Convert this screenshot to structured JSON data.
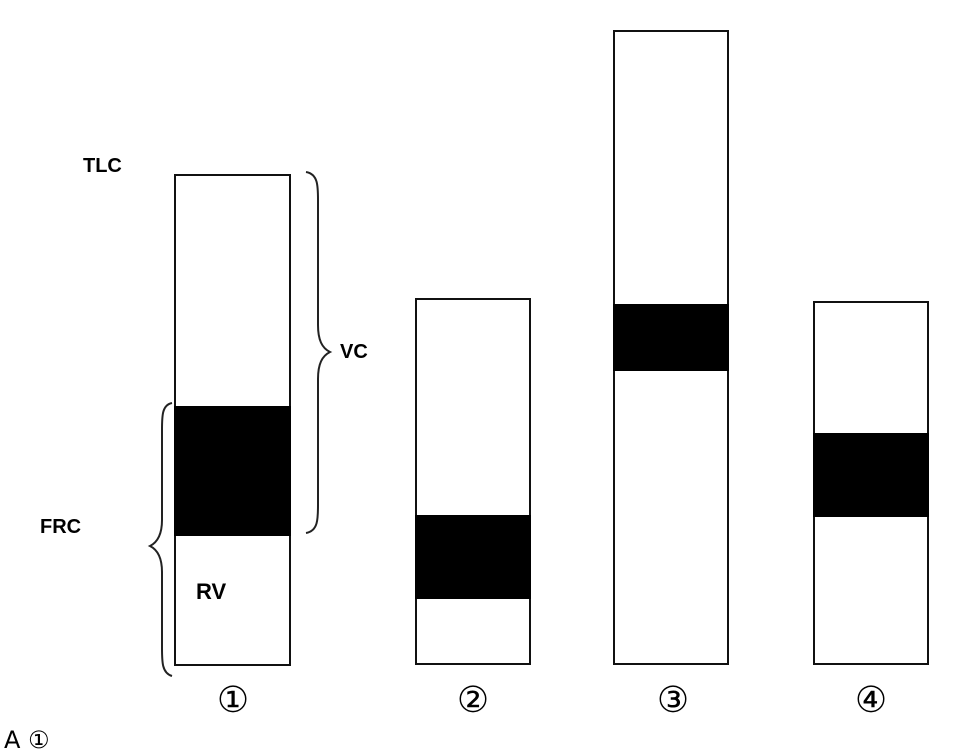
{
  "labels": {
    "tlc": "TLC",
    "vc": "VC",
    "frc": "FRC",
    "rv": "RV"
  },
  "columns": [
    {
      "id": "1",
      "label": "①"
    },
    {
      "id": "2",
      "label": "②"
    },
    {
      "id": "3",
      "label": "③"
    },
    {
      "id": "4",
      "label": "④"
    }
  ],
  "answer_text": "A ①"
}
